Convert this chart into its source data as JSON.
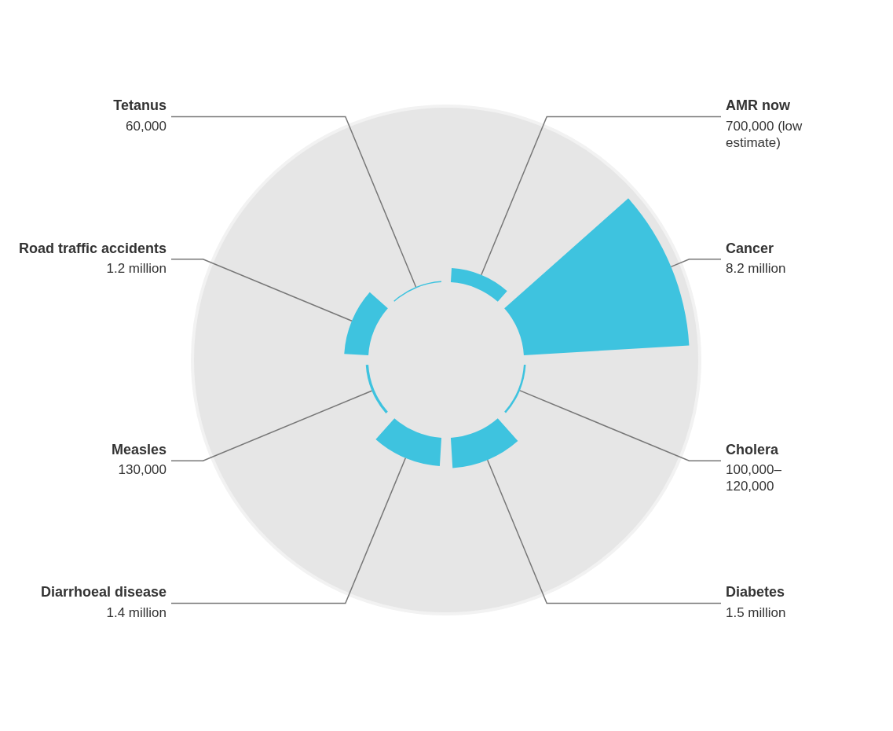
{
  "chart_data": {
    "type": "other",
    "categories": [
      "AMR now",
      "Cancer",
      "Cholera",
      "Diabetes",
      "Diarrhoeal disease",
      "Measles",
      "Road traffic accidents",
      "Tetanus"
    ],
    "values": [
      700000,
      8200000,
      100000,
      1500000,
      1400000,
      130000,
      1200000,
      60000
    ],
    "value_labels": [
      "700,000 (low estimate)",
      "8.2 million",
      "100,000–120,000",
      "1.5 million",
      "1.4 million",
      "130,000",
      "1.2 million",
      "60,000"
    ],
    "color": "#3ec3df",
    "legend": false
  }
}
